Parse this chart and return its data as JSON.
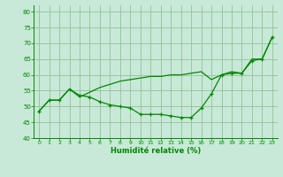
{
  "xlabel": "Humidité relative (%)",
  "background_color": "#c8e8d8",
  "line_color": "#008800",
  "grid_color": "#88bb88",
  "xlim": [
    -0.5,
    23.5
  ],
  "ylim": [
    40,
    82
  ],
  "yticks": [
    40,
    45,
    50,
    55,
    60,
    65,
    70,
    75,
    80
  ],
  "xticks": [
    0,
    1,
    2,
    3,
    4,
    5,
    6,
    7,
    8,
    9,
    10,
    11,
    12,
    13,
    14,
    15,
    16,
    17,
    18,
    19,
    20,
    21,
    22,
    23
  ],
  "smooth_x": [
    0,
    1,
    2,
    3,
    4,
    5,
    6,
    7,
    8,
    9,
    10,
    11,
    12,
    13,
    14,
    15,
    16,
    17,
    18,
    19,
    20,
    21,
    22,
    23
  ],
  "smooth_y": [
    48.5,
    52,
    52,
    55.5,
    53,
    54.5,
    56,
    57,
    58,
    58.5,
    59,
    59.5,
    59.5,
    60,
    60,
    60.5,
    61,
    58.5,
    60,
    61,
    60.5,
    65,
    65,
    72
  ],
  "marked_x": [
    0,
    1,
    2,
    3,
    4,
    5,
    6,
    7,
    8,
    9,
    10,
    11,
    12,
    13,
    14,
    15,
    16,
    17,
    18,
    19,
    20,
    21,
    22,
    23
  ],
  "marked_y": [
    48.5,
    52,
    52,
    55.5,
    53.5,
    53,
    51.5,
    50.5,
    50,
    49.5,
    47.5,
    47.5,
    47.5,
    47,
    46.5,
    46.5,
    49.5,
    54,
    60,
    60.5,
    60.5,
    64.5,
    65,
    72
  ]
}
